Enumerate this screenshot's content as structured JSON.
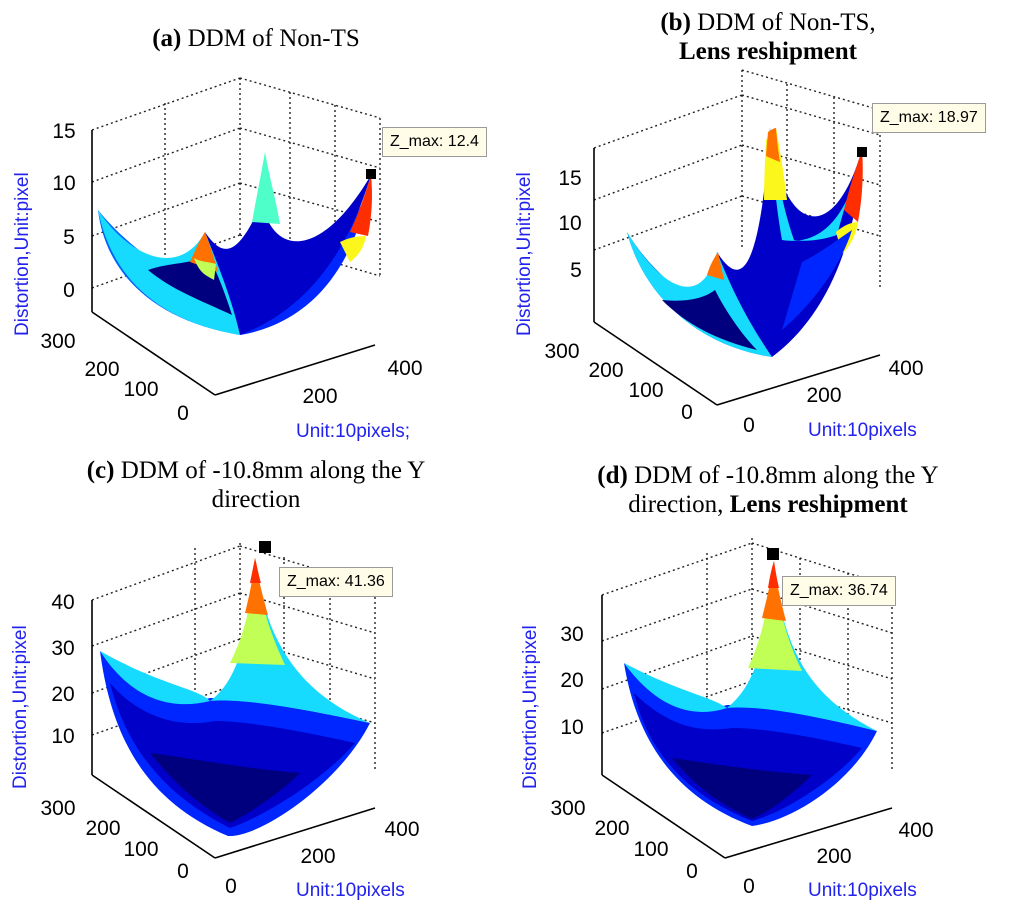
{
  "chart_data": [
    {
      "type": "surface3d",
      "title_bold": "(a)",
      "title_normal": "DDM of Non-TS",
      "title_line2_normal": "",
      "title_line2_bold": "",
      "zlabel": "Distortion,Unit:pixel",
      "xlabel": "Unit:10pixels;",
      "z_ticks": [
        "15",
        "10",
        "5",
        "0"
      ],
      "y_ticks": [
        "300",
        "200",
        "100",
        "0"
      ],
      "x_ticks": [
        "200",
        "400"
      ],
      "zlim": [
        0,
        15
      ],
      "z_max_label": "Z_max: 12.4",
      "z_max": 12.4,
      "corner_values": {
        "back_left": 7.5,
        "back": 5.8,
        "back_right": 10.2,
        "front_right": 12.4
      }
    },
    {
      "type": "surface3d",
      "title_bold": "(b)",
      "title_normal": "DDM of Non-TS,",
      "title_line2_normal": "",
      "title_line2_bold": "Lens reshipment",
      "zlabel": "Distortion,Unit:pixel",
      "xlabel": "Unit:10pixels",
      "z_ticks": [
        "15",
        "10",
        "5"
      ],
      "y_ticks": [
        "300",
        "200",
        "100",
        "0"
      ],
      "x_ticks": [
        "0",
        "200",
        "400"
      ],
      "zlim": [
        0,
        19
      ],
      "z_max_label": "Z_max: 18.97",
      "z_max": 18.97,
      "corner_values": {
        "back_left": 9.5,
        "back": 7.5,
        "back_right": 16.5,
        "front_right": 18.97
      }
    },
    {
      "type": "surface3d",
      "title_bold": "(c)",
      "title_normal": "DDM of -10.8mm along the Y",
      "title_line2_normal": "direction",
      "title_line2_bold": "",
      "zlabel": "Distortion,Unit:pixel",
      "xlabel": "Unit:10pixels",
      "z_ticks": [
        "40",
        "30",
        "20",
        "10"
      ],
      "y_ticks": [
        "300",
        "200",
        "100",
        "0"
      ],
      "x_ticks": [
        "0",
        "200",
        "400"
      ],
      "zlim": [
        0,
        42
      ],
      "z_max_label": "Z_max: 41.36",
      "z_max": 41.36,
      "corner_values": {
        "back_left": 29,
        "back": 41.36,
        "back_right": 12,
        "front_right": 10
      }
    },
    {
      "type": "surface3d",
      "title_bold": "(d)",
      "title_normal": "DDM of -10.8mm along the Y",
      "title_line2_normal": "direction,",
      "title_line2_bold": "Lens reshipment",
      "zlabel": "Distortion,Unit:pixel",
      "xlabel": "Unit:10pixels",
      "z_ticks": [
        "30",
        "20",
        "10"
      ],
      "y_ticks": [
        "300",
        "200",
        "100",
        "0"
      ],
      "x_ticks": [
        "0",
        "200",
        "400"
      ],
      "zlim": [
        0,
        37
      ],
      "z_max_label": "Z_max: 36.74",
      "z_max": 36.74,
      "corner_values": {
        "back_left": 22,
        "back": 36.74,
        "back_right": 10,
        "front_right": 9
      }
    }
  ],
  "colormap": [
    "#00007f",
    "#0000c8",
    "#0026ff",
    "#0062ff",
    "#009eff",
    "#16dbff",
    "#4fffc9",
    "#88ff8f",
    "#c1ff56",
    "#fbf61c",
    "#ffb400",
    "#ff7100",
    "#ff2e00",
    "#c80000"
  ]
}
